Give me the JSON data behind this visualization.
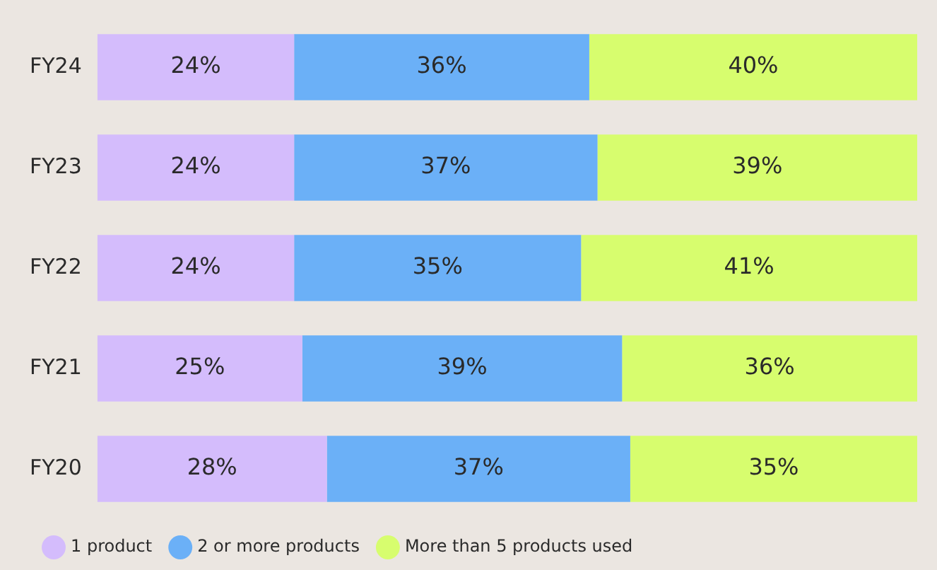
{
  "chart_data": {
    "type": "bar",
    "orientation": "horizontal",
    "stacked": true,
    "categories": [
      "FY24",
      "FY23",
      "FY22",
      "FY21",
      "FY20"
    ],
    "series": [
      {
        "name": "1 product",
        "color": "#d4bcfc",
        "values": [
          24,
          24,
          24,
          25,
          28
        ],
        "value_labels": [
          "24%",
          "24%",
          "24%",
          "25%",
          "28%"
        ]
      },
      {
        "name": "2 or more products",
        "color": "#6bb0f7",
        "values": [
          36,
          37,
          35,
          39,
          37
        ],
        "value_labels": [
          "36%",
          "37%",
          "35%",
          "39%",
          "37%"
        ]
      },
      {
        "name": "More than 5 products used",
        "color": "#d7fd6e",
        "values": [
          40,
          39,
          41,
          36,
          35
        ],
        "value_labels": [
          "40%",
          "39%",
          "41%",
          "36%",
          "35%"
        ]
      }
    ],
    "tick_labels": "y",
    "legend": "bottom left"
  }
}
